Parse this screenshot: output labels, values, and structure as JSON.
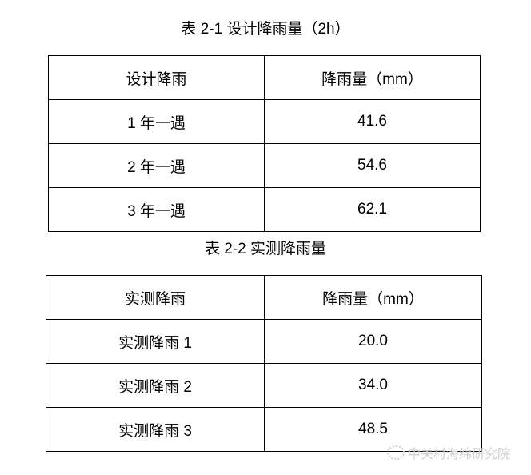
{
  "table1": {
    "title": "表 2-1 设计降雨量（2h）",
    "headers": [
      "设计降雨",
      "降雨量（mm）"
    ],
    "rows": [
      [
        "1 年一遇",
        "41.6"
      ],
      [
        "2 年一遇",
        "54.6"
      ],
      [
        "3 年一遇",
        "62.1"
      ]
    ]
  },
  "table2": {
    "title": "表 2-2 实测降雨量",
    "headers": [
      "实测降雨",
      "降雨量（mm）"
    ],
    "rows": [
      [
        "实测降雨 1",
        "20.0"
      ],
      [
        "实测降雨 2",
        "34.0"
      ],
      [
        "实测降雨 3",
        "48.5"
      ]
    ]
  },
  "watermark": {
    "text": "中关村海绵研究院",
    "icon": "wechat-icon"
  }
}
